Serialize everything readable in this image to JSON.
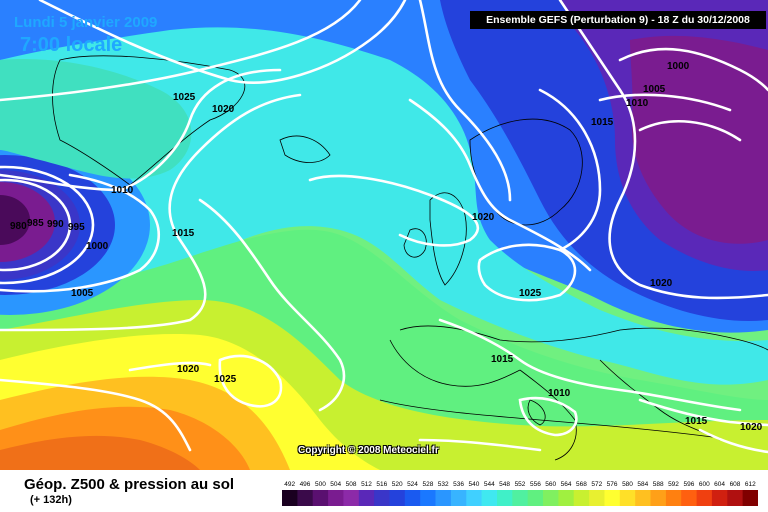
{
  "header": {
    "date": "Lundi 5 janvier 2009",
    "local_time": "7:00 locale",
    "model_run": "Ensemble GEFS (Perturbation 9)  -  18 Z du 30/12/2008"
  },
  "copyright": "Copyright © 2008 Meteociel.fr",
  "footer": {
    "title": "Géop. Z500 & pression au sol",
    "forecast_hour": "(+ 132h)"
  },
  "legend": {
    "values": [
      "492",
      "496",
      "500",
      "504",
      "508",
      "512",
      "516",
      "520",
      "524",
      "528",
      "532",
      "536",
      "540",
      "544",
      "548",
      "552",
      "556",
      "560",
      "564",
      "568",
      "572",
      "576",
      "580",
      "584",
      "588",
      "592",
      "596",
      "600",
      "604",
      "608",
      "612"
    ],
    "colors": [
      "#1a0020",
      "#3a0a4a",
      "#5a1070",
      "#7a1c90",
      "#8c2aa8",
      "#5a28b8",
      "#3a36c8",
      "#2442dc",
      "#1a5af0",
      "#1a78ff",
      "#2a96ff",
      "#38b4ff",
      "#40d0ff",
      "#40e8f0",
      "#40f0c8",
      "#50f0a0",
      "#60f080",
      "#80f060",
      "#a0f040",
      "#c8f030",
      "#e8f030",
      "#ffff30",
      "#ffe028",
      "#ffc020",
      "#ffa018",
      "#ff8010",
      "#ff6010",
      "#f04010",
      "#d02010",
      "#b01010",
      "#800000"
    ]
  },
  "isobars": [
    "980",
    "985",
    "990",
    "995",
    "1000",
    "1005",
    "1010",
    "1015",
    "1020",
    "1025",
    "1020",
    "1015",
    "1020",
    "1025",
    "1020",
    "1015",
    "1010",
    "1025",
    "1020",
    "1015",
    "1020",
    "1000",
    "1005",
    "1010",
    "1015",
    "1020"
  ],
  "colors": {
    "low_center": "#4a0a5a",
    "high_center": "#f07018",
    "isobar_line": "#ffffff"
  }
}
